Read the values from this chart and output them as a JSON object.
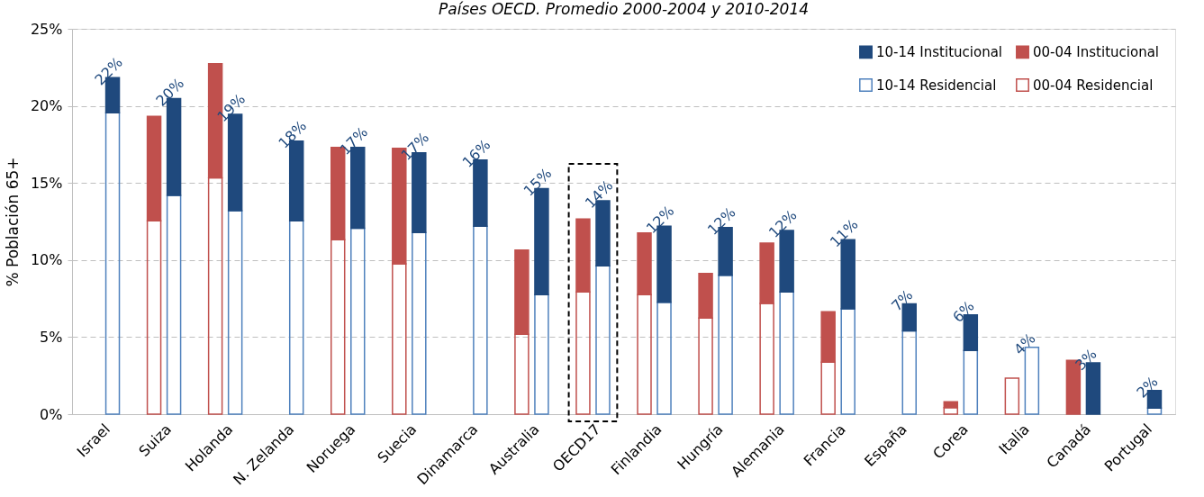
{
  "chart_data": {
    "type": "bar",
    "stacked": true,
    "title": "Países OECD. Promedio 2000-2004 y 2010-2014",
    "ylabel": "% Población 65+",
    "categories": [
      "Israel",
      null,
      "Suiza",
      null,
      "Holanda",
      null,
      "N. Zelanda",
      null,
      "Noruega",
      null,
      "Suecia",
      null,
      "Dinamarca",
      null,
      "Australia",
      null,
      "OECD17",
      null,
      "Finlandia",
      null,
      "Hungría",
      null,
      "Alemania",
      null,
      "Francia",
      null,
      "España",
      null,
      "Corea",
      null,
      "Italia",
      null,
      "Canadá",
      null,
      "Portugal",
      null
    ],
    "series": [
      {
        "name": "00-04 Residencial",
        "color": "#c0504d",
        "values": [
          null,
          null,
          12.54,
          null,
          15.33,
          null,
          null,
          null,
          11.32,
          null,
          9.75,
          null,
          null,
          null,
          5.18,
          null,
          7.93,
          null,
          7.76,
          null,
          6.24,
          null,
          7.18,
          null,
          3.37,
          null,
          null,
          null,
          0.42,
          null,
          2.33,
          null,
          null,
          null,
          null,
          null
        ]
      },
      {
        "name": "00-04 Institucional",
        "color": "#c0504d",
        "values": [
          null,
          null,
          6.78,
          null,
          7.4,
          null,
          null,
          null,
          5.98,
          null,
          7.5,
          null,
          null,
          null,
          5.46,
          null,
          4.73,
          null,
          4.0,
          null,
          2.89,
          null,
          3.92,
          null,
          3.27,
          null,
          null,
          null,
          0.38,
          null,
          null,
          null,
          3.49,
          null,
          null,
          null
        ]
      },
      {
        "name": "10-14 Residencial",
        "color": "#4f81bd",
        "values": [
          null,
          19.56,
          null,
          14.19,
          null,
          13.2,
          null,
          12.54,
          null,
          12.06,
          null,
          11.78,
          null,
          12.2,
          null,
          7.76,
          null,
          9.63,
          null,
          7.26,
          null,
          9.01,
          null,
          7.93,
          null,
          6.84,
          null,
          5.4,
          null,
          4.13,
          null,
          4.33,
          null,
          null,
          null,
          0.4
        ]
      },
      {
        "name": "10-14 Institucional",
        "color": "#1f497d",
        "values": [
          null,
          2.27,
          null,
          6.28,
          null,
          6.25,
          null,
          5.18,
          null,
          5.24,
          null,
          5.17,
          null,
          4.29,
          null,
          6.87,
          null,
          4.21,
          null,
          4.94,
          null,
          3.09,
          null,
          3.99,
          null,
          4.48,
          null,
          1.76,
          null,
          2.31,
          null,
          null,
          null,
          3.33,
          null,
          1.14
        ]
      }
    ],
    "totals": [
      null,
      "22%",
      null,
      "20%",
      null,
      "19%",
      null,
      "18%",
      null,
      "17%",
      null,
      "17%",
      null,
      "16%",
      null,
      "15%",
      null,
      "14%",
      null,
      "12%",
      null,
      "12%",
      null,
      "12%",
      null,
      "11%",
      null,
      "7%",
      null,
      "6%",
      null,
      "4%",
      null,
      "3%",
      null,
      "2%"
    ],
    "ylim": [
      0,
      25
    ],
    "yticks": [
      {
        "value": 0,
        "label": "0%"
      },
      {
        "value": 5,
        "label": "5%"
      },
      {
        "value": 10,
        "label": "10%"
      },
      {
        "value": 15,
        "label": "15%"
      },
      {
        "value": 20,
        "label": "20%"
      },
      {
        "value": 25,
        "label": "25%"
      }
    ],
    "grid": "y",
    "legend": "top right"
  }
}
